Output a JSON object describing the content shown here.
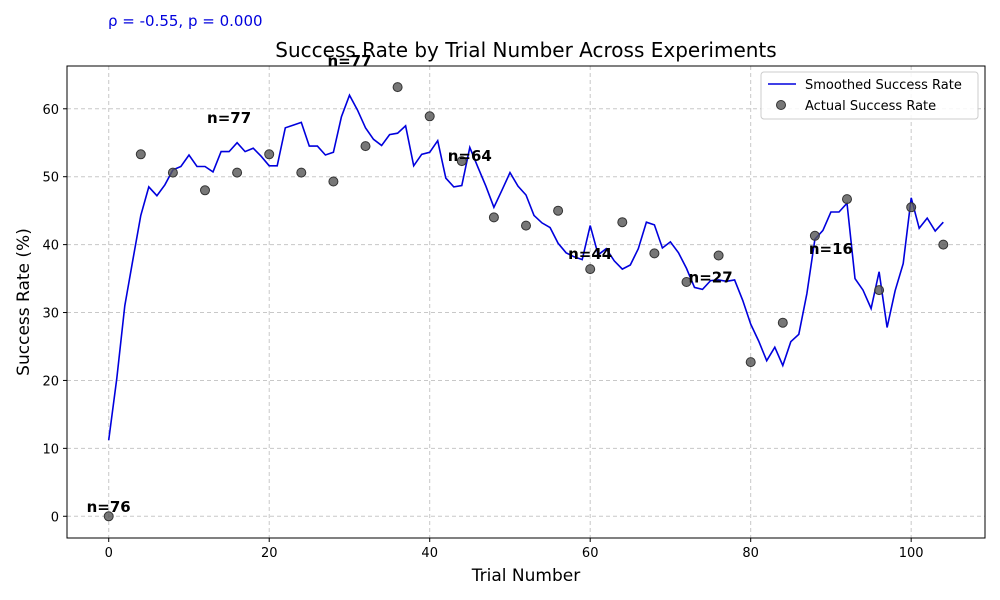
{
  "chart_data": {
    "type": "line",
    "title": "Success Rate by Trial Number Across Experiments",
    "annotation_top": "ρ = -0.55, p = 0.000",
    "xlabel": "Trial Number",
    "ylabel": "Success Rate (%)",
    "xlim": [
      -5.2,
      109.2
    ],
    "ylim": [
      -3.2,
      66.3
    ],
    "xticks": [
      0,
      20,
      40,
      60,
      80,
      100
    ],
    "yticks": [
      0,
      10,
      20,
      30,
      40,
      50,
      60
    ],
    "grid": true,
    "legend_position": "top-right",
    "colors": {
      "smoothed": "#0000dd",
      "actual": "#555555",
      "annotation_top": "#0000dd",
      "grid": "#c8c8c8"
    },
    "series": [
      {
        "name": "Smoothed Success Rate",
        "kind": "line",
        "x": [
          0,
          1,
          2,
          3,
          4,
          5,
          6,
          7,
          8,
          9,
          10,
          11,
          12,
          13,
          14,
          15,
          16,
          17,
          18,
          19,
          20,
          21,
          22,
          23,
          24,
          25,
          26,
          27,
          28,
          29,
          30,
          31,
          32,
          33,
          34,
          35,
          36,
          37,
          38,
          39,
          40,
          41,
          42,
          43,
          44,
          45,
          46,
          47,
          48,
          49,
          50,
          51,
          52,
          53,
          54,
          55,
          56,
          57,
          58,
          59,
          60,
          61,
          62,
          63,
          64,
          65,
          66,
          67,
          68,
          69,
          70,
          71,
          72,
          73,
          74,
          75,
          76,
          77,
          78,
          79,
          80,
          81,
          82,
          83,
          84,
          85,
          86,
          87,
          88,
          89,
          90,
          91,
          92,
          93,
          94,
          95,
          96,
          97,
          98,
          99,
          100,
          101,
          102,
          103,
          104
        ],
        "y": [
          11.2,
          20.3,
          31.0,
          37.7,
          44.3,
          48.5,
          47.2,
          48.8,
          51.0,
          51.5,
          53.2,
          51.5,
          51.5,
          50.7,
          53.7,
          53.7,
          55.0,
          53.7,
          54.2,
          53.0,
          51.6,
          51.6,
          57.2,
          57.6,
          58.0,
          54.5,
          54.5,
          53.2,
          53.6,
          58.8,
          62.0,
          59.8,
          57.2,
          55.5,
          54.6,
          56.2,
          56.4,
          57.5,
          51.6,
          53.3,
          53.6,
          55.3,
          49.8,
          48.5,
          48.7,
          54.3,
          51.4,
          48.6,
          45.5,
          48.0,
          50.6,
          48.6,
          47.3,
          44.3,
          43.2,
          42.5,
          40.2,
          38.8,
          38.2,
          37.8,
          42.8,
          38.5,
          39.4,
          37.6,
          36.4,
          37.0,
          39.4,
          43.3,
          42.9,
          39.5,
          40.4,
          38.8,
          36.5,
          33.7,
          33.4,
          34.7,
          34.8,
          34.6,
          34.8,
          31.8,
          28.3,
          25.8,
          22.9,
          24.9,
          22.2,
          25.7,
          26.8,
          32.8,
          40.8,
          42.1,
          44.8,
          44.8,
          46.1,
          35.0,
          33.3,
          30.6,
          36.0,
          27.8,
          33.2,
          37.2,
          46.9,
          42.4,
          43.9,
          42.0,
          43.3
        ]
      },
      {
        "name": "Actual Success Rate",
        "kind": "scatter",
        "x": [
          0,
          4,
          8,
          12,
          16,
          20,
          24,
          28,
          32,
          36,
          40,
          44,
          48,
          52,
          56,
          60,
          64,
          68,
          72,
          76,
          80,
          84,
          88,
          92,
          96,
          100,
          104
        ],
        "y": [
          0.0,
          53.3,
          50.6,
          48.0,
          50.6,
          53.3,
          50.6,
          49.3,
          54.5,
          63.2,
          58.9,
          52.3,
          44.0,
          42.8,
          45.0,
          36.4,
          43.3,
          38.7,
          34.5,
          38.4,
          22.7,
          28.5,
          41.3,
          46.7,
          33.3,
          45.5,
          40.0
        ]
      }
    ],
    "labels": [
      {
        "text": "n=76",
        "x": 0,
        "y": 0.6
      },
      {
        "text": "n=77",
        "x": 15,
        "y": 57.9
      },
      {
        "text": "n=77",
        "x": 30,
        "y": 66.3
      },
      {
        "text": "n=64",
        "x": 45,
        "y": 52.3
      },
      {
        "text": "n=44",
        "x": 60,
        "y": 37.9
      },
      {
        "text": "n=27",
        "x": 75,
        "y": 34.4
      },
      {
        "text": "n=16",
        "x": 90,
        "y": 38.6
      }
    ]
  }
}
